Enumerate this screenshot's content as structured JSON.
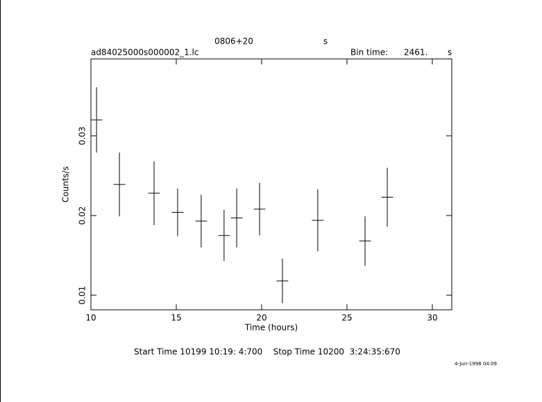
{
  "chart_data": {
    "type": "errorbar",
    "title": "0806+20",
    "title_unit": "s",
    "subtitle": "ad84025000s000002_1.lc",
    "bin_label": "Bin time:",
    "bin_value": "2461.",
    "bin_unit": "s",
    "xlabel": "Time (hours)",
    "ylabel": "Counts/s",
    "footer": "Start Time 10199 10:19: 4:700    Stop Time 10200  3:24:35:670",
    "date": "4-Jun-1998 04:09",
    "color": "#000000",
    "x": [
      10.33,
      11.67,
      13.7,
      15.08,
      16.46,
      17.8,
      18.54,
      19.88,
      21.22,
      23.29,
      26.06,
      27.36
    ],
    "values": [
      0.032,
      0.0239,
      0.0228,
      0.0204,
      0.0193,
      0.0175,
      0.0197,
      0.0208,
      0.0118,
      0.0194,
      0.0168,
      0.0223
    ],
    "errors": [
      0.0041,
      0.004,
      0.004,
      0.003,
      0.0033,
      0.0032,
      0.0037,
      0.0033,
      0.0028,
      0.0039,
      0.0031,
      0.0037
    ],
    "xerr": 0.342,
    "xlim": [
      10,
      31.14
    ],
    "xticks": [
      10,
      15,
      20,
      25,
      30
    ],
    "ylim": [
      0.00817,
      0.03965
    ],
    "yticks": [
      0.01,
      0.02,
      0.03
    ]
  }
}
